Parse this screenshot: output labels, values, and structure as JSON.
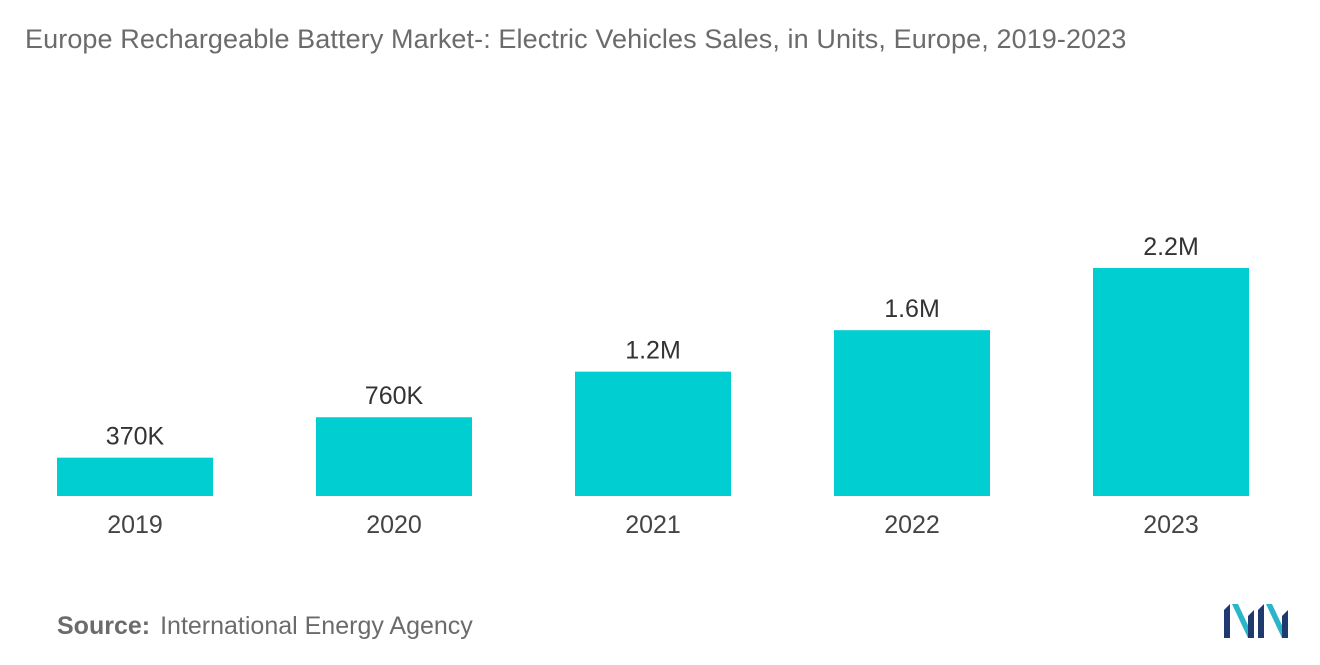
{
  "chart_data": {
    "type": "bar",
    "title": "Europe Rechargeable Battery Market-: Electric Vehicles Sales, in Units, Europe, 2019-2023",
    "categories": [
      "2019",
      "2020",
      "2021",
      "2022",
      "2023"
    ],
    "values": [
      370000,
      760000,
      1200000,
      1600000,
      2200000
    ],
    "data_labels": [
      "370K",
      "760K",
      "1.2M",
      "1.6M",
      "2.2M"
    ],
    "xlabel": "",
    "ylabel": "",
    "ylim": [
      0,
      2200000
    ],
    "grid": false,
    "legend": "none",
    "bar_color": "#00ced1"
  },
  "source": {
    "label": "Source:",
    "text": "International Energy Agency"
  },
  "logo": {
    "icon": "mordor-intelligence-logo-icon",
    "colors": [
      "#1e3a6e",
      "#2bb5c9"
    ]
  }
}
